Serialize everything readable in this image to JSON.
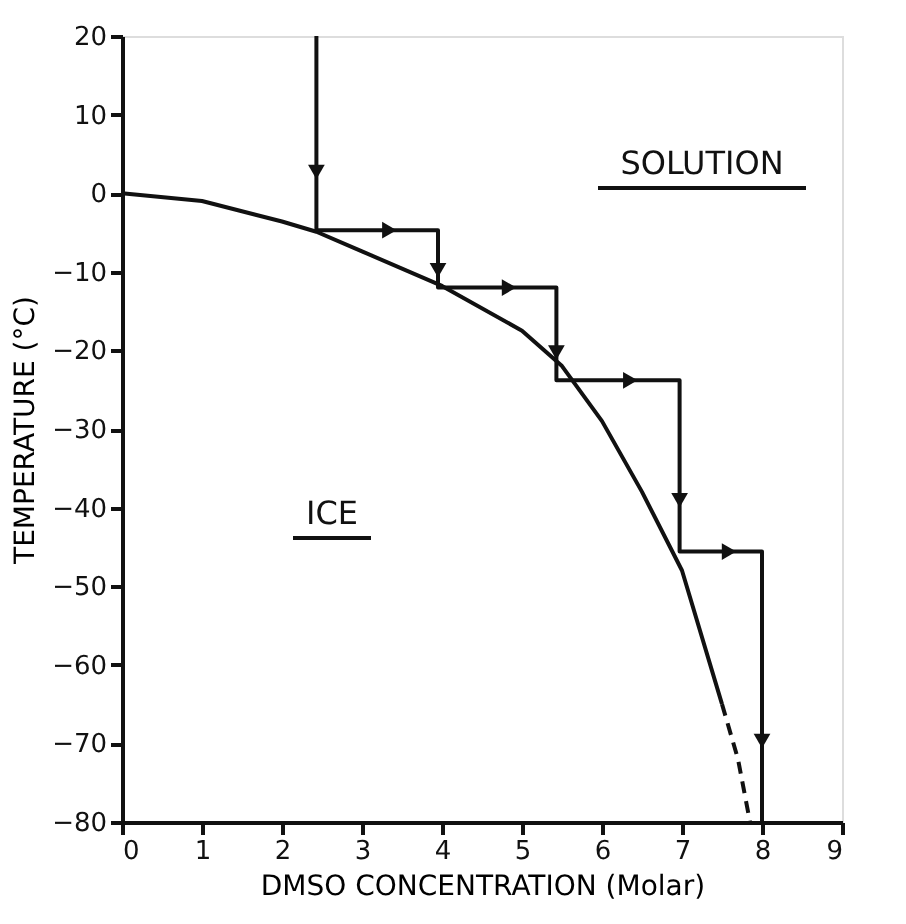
{
  "chart_data": {
    "type": "line",
    "xlabel": "DMSO  CONCENTRATION  (Molar)",
    "ylabel": "TEMPERATURE (°C)",
    "xlim": [
      0,
      9
    ],
    "xticks": [
      0,
      1,
      2,
      3,
      4,
      5,
      6,
      7,
      8,
      9
    ],
    "ylim": [
      -80,
      20
    ],
    "yticks": [
      -80,
      -70,
      -60,
      -50,
      -40,
      -30,
      -20,
      -10,
      0,
      10,
      20
    ],
    "grid": false,
    "marker": "none",
    "series": [
      {
        "color": "#111111",
        "line_style": "solid",
        "x": [
          0,
          1,
          2,
          2.43,
          3,
          4,
          5,
          5.5,
          6,
          6.5,
          7,
          7.5
        ],
        "values": [
          0,
          -1,
          -3.6,
          -4.9,
          -7.4,
          -11.8,
          -17.5,
          -22,
          -29,
          -38,
          -48,
          -65
        ]
      },
      {
        "color": "#111111",
        "line_style": "dashed",
        "x": [
          7.5,
          7.7,
          7.85
        ],
        "values": [
          -65,
          -72,
          -80
        ]
      },
      {
        "color": "#111111",
        "line_style": "solid",
        "x": [
          2.43,
          2.43,
          3.95,
          3.95,
          5.43,
          5.43,
          6.97,
          6.97,
          8,
          8
        ],
        "values": [
          20,
          -4.7,
          -4.7,
          -12,
          -12,
          -23.8,
          -23.8,
          -45.6,
          -45.6,
          -80
        ]
      }
    ],
    "annotations": [
      "SOLUTION",
      "ICE"
    ]
  }
}
